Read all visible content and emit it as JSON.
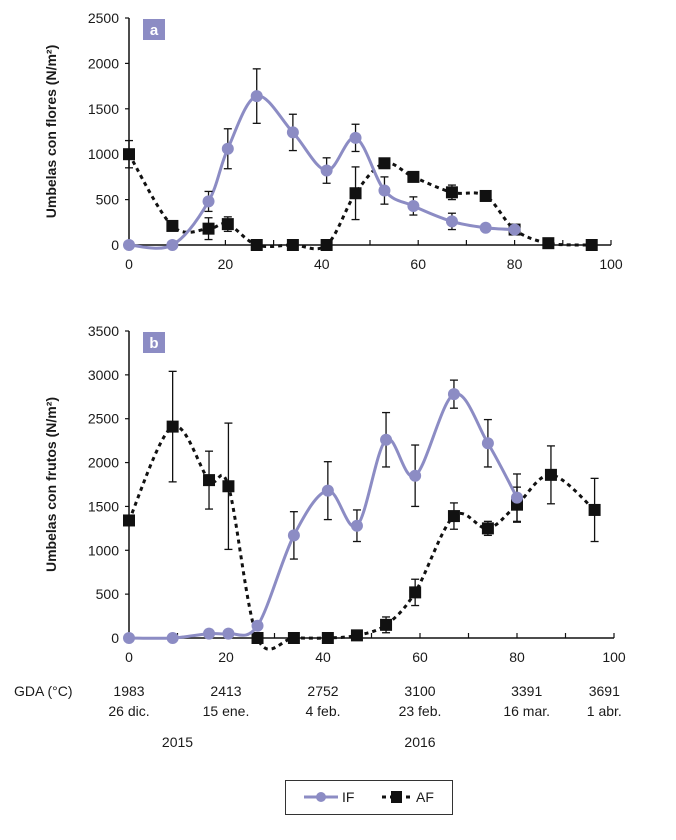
{
  "chart_data": [
    {
      "type": "line",
      "panel": "a",
      "title": "",
      "xlabel": "",
      "ylabel": "Umbelas con flores (N/m²)",
      "xlim": [
        0,
        100
      ],
      "ylim": [
        0,
        2500
      ],
      "xticks": [
        "0",
        "20",
        "40",
        "60",
        "80",
        "100"
      ],
      "yticks": [
        "0",
        "500",
        "1000",
        "1500",
        "2000",
        "2500"
      ],
      "grid": false,
      "series": [
        {
          "name": "IF",
          "style": "solid-smooth-circle",
          "color": "#8c8cc4",
          "x": [
            0,
            9,
            16.5,
            20.5,
            26.5,
            34,
            41,
            47,
            53,
            59,
            67,
            74,
            80
          ],
          "y": [
            0,
            0,
            480,
            1060,
            1640,
            1240,
            820,
            1180,
            600,
            430,
            260,
            190,
            170
          ],
          "err": [
            0,
            0,
            110,
            220,
            300,
            200,
            140,
            150,
            150,
            100,
            90,
            0,
            0
          ]
        },
        {
          "name": "AF",
          "style": "dashed-smooth-square",
          "color": "#111111",
          "x": [
            0,
            9,
            16.5,
            20.5,
            26.5,
            34,
            41,
            47,
            53,
            59,
            67,
            74,
            80,
            87,
            96
          ],
          "y": [
            1000,
            210,
            180,
            230,
            0,
            0,
            0,
            570,
            900,
            750,
            580,
            540,
            170,
            20,
            0
          ],
          "err": [
            150,
            0,
            120,
            80,
            0,
            0,
            0,
            290,
            0,
            0,
            80,
            0,
            0,
            0,
            0
          ]
        }
      ]
    },
    {
      "type": "line",
      "panel": "b",
      "title": "",
      "xlabel": "",
      "ylabel": "Umbelas con frutos (N/m²)",
      "xlim": [
        0,
        100
      ],
      "ylim": [
        0,
        3500
      ],
      "xticks": [
        "0",
        "20",
        "40",
        "60",
        "80",
        "100"
      ],
      "yticks": [
        "0",
        "500",
        "1000",
        "1500",
        "2000",
        "2500",
        "3000",
        "3500"
      ],
      "grid": false,
      "series": [
        {
          "name": "IF",
          "style": "solid-smooth-circle",
          "color": "#8c8cc4",
          "x": [
            0,
            9,
            16.5,
            20.5,
            26.5,
            34,
            41,
            47,
            53,
            59,
            67,
            74,
            80
          ],
          "y": [
            0,
            0,
            50,
            50,
            140,
            1170,
            1680,
            1280,
            2260,
            1850,
            2780,
            2220,
            1600
          ],
          "err": [
            0,
            0,
            0,
            0,
            0,
            270,
            330,
            180,
            310,
            350,
            160,
            270,
            270
          ]
        },
        {
          "name": "AF",
          "style": "dashed-smooth-square",
          "color": "#111111",
          "x": [
            0,
            9,
            16.5,
            20.5,
            26.5,
            34,
            41,
            47,
            53,
            59,
            67,
            74,
            80,
            87,
            96
          ],
          "y": [
            1340,
            2410,
            1800,
            1730,
            0,
            0,
            0,
            30,
            150,
            520,
            1390,
            1250,
            1520,
            1860,
            1460
          ],
          "err": [
            0,
            630,
            330,
            720,
            0,
            0,
            0,
            0,
            90,
            150,
            150,
            80,
            200,
            330,
            360
          ]
        }
      ],
      "secondary_axis": {
        "label": "GDA (°C)",
        "x": [
          0,
          20,
          40,
          60,
          82,
          98
        ],
        "gda": [
          "1983",
          "2413",
          "2752",
          "3100",
          "3391",
          "3691"
        ],
        "dates": [
          "26 dic.",
          "15 ene.",
          "4 feb.",
          "23 feb.",
          "16 mar.",
          "1 abr."
        ],
        "years": [
          {
            "label": "2015",
            "x": 10
          },
          {
            "label": "2016",
            "x": 60
          }
        ]
      }
    }
  ],
  "legend": {
    "position": "bottom-center",
    "items": [
      {
        "label": "IF",
        "marker": "circle",
        "line": "solid",
        "color": "#8c8cc4"
      },
      {
        "label": "AF",
        "marker": "square",
        "line": "dashed",
        "color": "#111111"
      }
    ]
  },
  "panel_badge_color": "#8c8cc4"
}
